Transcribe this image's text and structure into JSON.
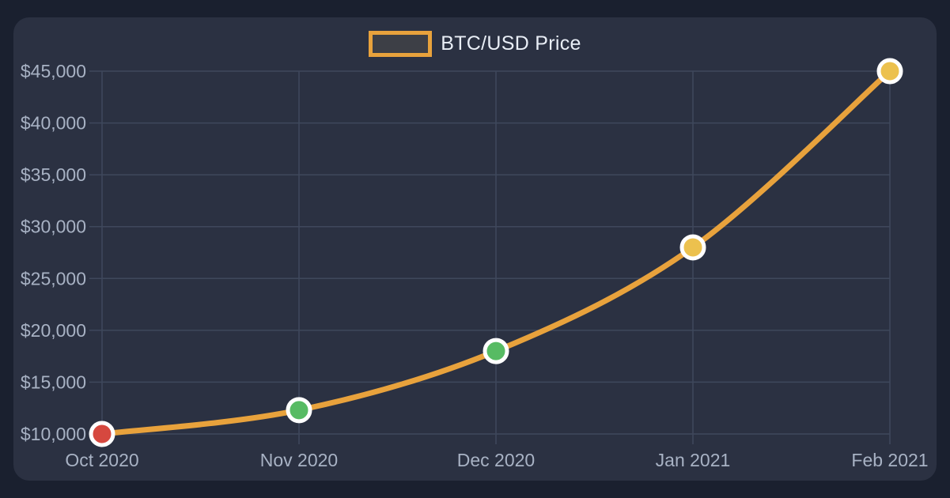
{
  "page": {
    "background": "#1a202f",
    "card_background": "#2b3142"
  },
  "legend": {
    "label": "BTC/USD Price",
    "swatch_border": "#e8a23c",
    "swatch_fill": "#3d3f46",
    "text_color": "#e9eef6"
  },
  "chart_data": {
    "type": "line",
    "title": "",
    "categories": [
      "Oct 2020",
      "Nov 2020",
      "Dec 2020",
      "Jan 2021",
      "Feb 2021"
    ],
    "series": [
      {
        "name": "BTC/USD Price",
        "values": [
          10000,
          12300,
          18000,
          28000,
          45000
        ],
        "line_color": "#e8a23c",
        "line_width": 7,
        "point_colors": [
          "#d6483f",
          "#57bb63",
          "#57bb63",
          "#ecc14e",
          "#ecc14e"
        ],
        "point_border_color": "#ffffff"
      }
    ],
    "xlabel": "",
    "ylabel": "",
    "ylim": [
      10000,
      45000
    ],
    "y_step": 5000,
    "y_tick_labels": [
      "$10,000",
      "$15,000",
      "$20,000",
      "$25,000",
      "$30,000",
      "$35,000",
      "$40,000",
      "$45,000"
    ],
    "grid": true,
    "legend_position": "top",
    "colors": {
      "grid": "#3f485c",
      "tick_text": "#a8b2c4"
    }
  }
}
